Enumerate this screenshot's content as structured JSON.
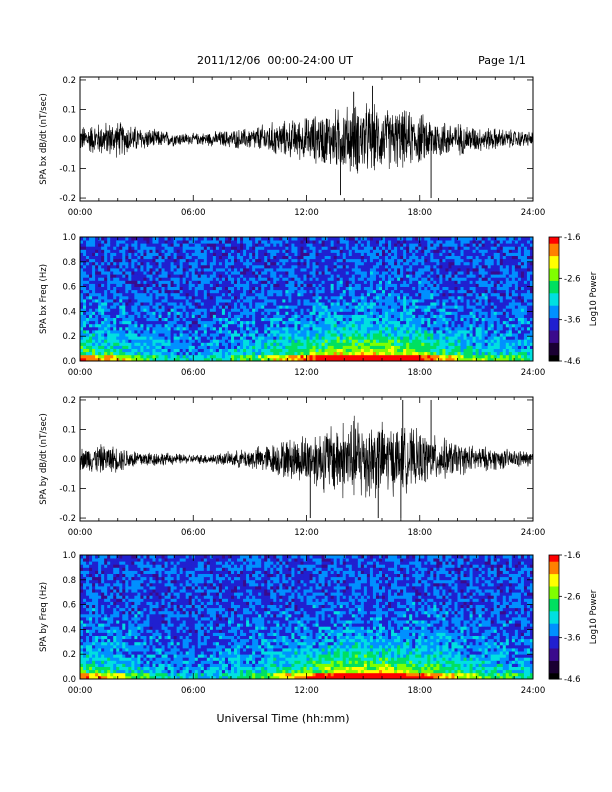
{
  "header": {
    "title": "2011/12/06  00:00-24:00 UT",
    "page": "Page 1/1"
  },
  "footer": {
    "xlabel": "Universal Time (hh:mm)"
  },
  "colors": {
    "trace": "#000000",
    "colormap": [
      "#000000",
      "#1a0033",
      "#3a0a8c",
      "#2020d0",
      "#0090ff",
      "#00e0e0",
      "#00e060",
      "#80ff00",
      "#ffff00",
      "#ff8000",
      "#ff0000"
    ]
  },
  "chart_data": [
    {
      "type": "line",
      "ylabel": "SPA bx dB/dt (nT/sec)",
      "ylim": [
        -0.21,
        0.21
      ],
      "yticks": [
        -0.2,
        -0.1,
        0.0,
        0.1,
        0.2
      ],
      "ytick_labels": [
        "-0.2",
        "-0.1",
        "0.0",
        "0.1",
        "0.2"
      ],
      "xlim": [
        0,
        24
      ],
      "xticks": [
        0,
        6,
        12,
        18,
        24
      ],
      "xtick_labels": [
        "00:00",
        "06:00",
        "12:00",
        "18:00",
        "24:00"
      ],
      "x": [
        0,
        1,
        2,
        3,
        4,
        5,
        6,
        7,
        8,
        9,
        10,
        11,
        12,
        13,
        14,
        15,
        16,
        17,
        18,
        19,
        20,
        21,
        22,
        23,
        24
      ],
      "amplitude": [
        0.035,
        0.045,
        0.05,
        0.035,
        0.025,
        0.02,
        0.015,
        0.02,
        0.025,
        0.03,
        0.045,
        0.05,
        0.06,
        0.075,
        0.09,
        0.1,
        0.085,
        0.08,
        0.07,
        0.055,
        0.045,
        0.035,
        0.03,
        0.025,
        0.02
      ],
      "spikes": [
        {
          "x": 15.5,
          "y": 0.18
        },
        {
          "x": 13.8,
          "y": -0.19
        },
        {
          "x": 18.6,
          "y": -0.2
        },
        {
          "x": 14.5,
          "y": 0.16
        }
      ],
      "grid": false
    },
    {
      "type": "heatmap",
      "ylabel": "SPA bx Freq (Hz)",
      "ylim": [
        0,
        1.0
      ],
      "yticks": [
        0,
        0.2,
        0.4,
        0.6,
        0.8,
        1.0
      ],
      "ytick_labels": [
        "0.0",
        "0.2",
        "0.4",
        "0.6",
        "0.8",
        "1.0"
      ],
      "xlim": [
        0,
        24
      ],
      "xticks": [
        0,
        6,
        12,
        18,
        24
      ],
      "xtick_labels": [
        "00:00",
        "06:00",
        "12:00",
        "18:00",
        "24:00"
      ],
      "colorbar": {
        "label": "Log10 Power",
        "range": [
          -4.6,
          -1.6
        ],
        "ticks": [
          -1.6,
          -2.6,
          -3.6,
          -4.6
        ],
        "tick_labels": [
          "-1.6",
          "-2.6",
          "-3.6",
          "-4.6"
        ]
      },
      "activity": [
        0.6,
        0.5,
        0.45,
        0.35,
        0.25,
        0.2,
        0.15,
        0.18,
        0.25,
        0.3,
        0.4,
        0.5,
        0.6,
        0.75,
        0.85,
        0.9,
        0.85,
        0.8,
        0.7,
        0.55,
        0.45,
        0.35,
        0.3,
        0.3,
        0.25
      ],
      "grid": false
    },
    {
      "type": "line",
      "ylabel": "SPA by dB/dt (nT/sec)",
      "ylim": [
        -0.21,
        0.21
      ],
      "yticks": [
        -0.2,
        -0.1,
        0.0,
        0.1,
        0.2
      ],
      "ytick_labels": [
        "-0.2",
        "-0.1",
        "0.0",
        "0.1",
        "0.2"
      ],
      "xlim": [
        0,
        24
      ],
      "xticks": [
        0,
        6,
        12,
        18,
        24
      ],
      "xtick_labels": [
        "00:00",
        "06:00",
        "12:00",
        "18:00",
        "24:00"
      ],
      "x": [
        0,
        1,
        2,
        3,
        4,
        5,
        6,
        7,
        8,
        9,
        10,
        11,
        12,
        13,
        14,
        15,
        16,
        17,
        18,
        19,
        20,
        21,
        22,
        23,
        24
      ],
      "amplitude": [
        0.03,
        0.04,
        0.035,
        0.025,
        0.02,
        0.015,
        0.012,
        0.015,
        0.02,
        0.03,
        0.04,
        0.055,
        0.07,
        0.09,
        0.11,
        0.12,
        0.1,
        0.09,
        0.075,
        0.06,
        0.045,
        0.035,
        0.03,
        0.025,
        0.02
      ],
      "spikes": [
        {
          "x": 17.1,
          "y": 0.2
        },
        {
          "x": 18.6,
          "y": 0.2
        },
        {
          "x": 12.2,
          "y": -0.2
        },
        {
          "x": 15.8,
          "y": -0.2
        },
        {
          "x": 17.0,
          "y": -0.2
        }
      ],
      "grid": false
    },
    {
      "type": "heatmap",
      "ylabel": "SPA by Freq (Hz)",
      "ylim": [
        0,
        1.0
      ],
      "yticks": [
        0,
        0.2,
        0.4,
        0.6,
        0.8,
        1.0
      ],
      "ytick_labels": [
        "0.0",
        "0.2",
        "0.4",
        "0.6",
        "0.8",
        "1.0"
      ],
      "xlim": [
        0,
        24
      ],
      "xticks": [
        0,
        6,
        12,
        18,
        24
      ],
      "xtick_labels": [
        "00:00",
        "06:00",
        "12:00",
        "18:00",
        "24:00"
      ],
      "colorbar": {
        "label": "Log10 Power",
        "range": [
          -4.6,
          -1.6
        ],
        "ticks": [
          -1.6,
          -2.6,
          -3.6,
          -4.6
        ],
        "tick_labels": [
          "-1.6",
          "-2.6",
          "-3.6",
          "-4.6"
        ]
      },
      "activity": [
        0.55,
        0.5,
        0.4,
        0.3,
        0.22,
        0.18,
        0.14,
        0.16,
        0.22,
        0.28,
        0.38,
        0.48,
        0.58,
        0.72,
        0.82,
        0.88,
        0.85,
        0.78,
        0.68,
        0.55,
        0.45,
        0.35,
        0.3,
        0.28,
        0.25
      ],
      "grid": false
    }
  ]
}
